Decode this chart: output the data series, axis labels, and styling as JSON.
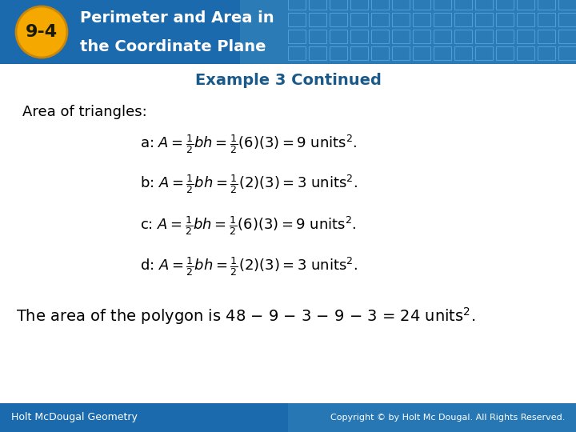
{
  "header_bg_color": "#1a6aad",
  "badge_color": "#f5a800",
  "badge_text": "9-4",
  "header_line1": "Perimeter and Area in",
  "header_line2": "the Coordinate Plane",
  "header_text_color": "#ffffff",
  "subtitle": "Example 3 Continued",
  "subtitle_color": "#1a5a8a",
  "body_bg_color": "#ffffff",
  "area_label": "Area of triangles:",
  "body_text_color": "#000000",
  "footer_bg_color": "#1a6aad",
  "footer_left": "Holt McDougal Geometry",
  "footer_right": "Copyright © by Holt Mc Dougal. All Rights Reserved.",
  "footer_text_color": "#ffffff",
  "grid_color": "#2a7abf",
  "fig_width": 7.2,
  "fig_height": 5.4,
  "row_labels": [
    "a",
    "b",
    "c",
    "d"
  ],
  "row_values": [
    "(6)(3)=9",
    "(2)(3)=3",
    "(6)(3)=9",
    "(2)(3)=3"
  ]
}
